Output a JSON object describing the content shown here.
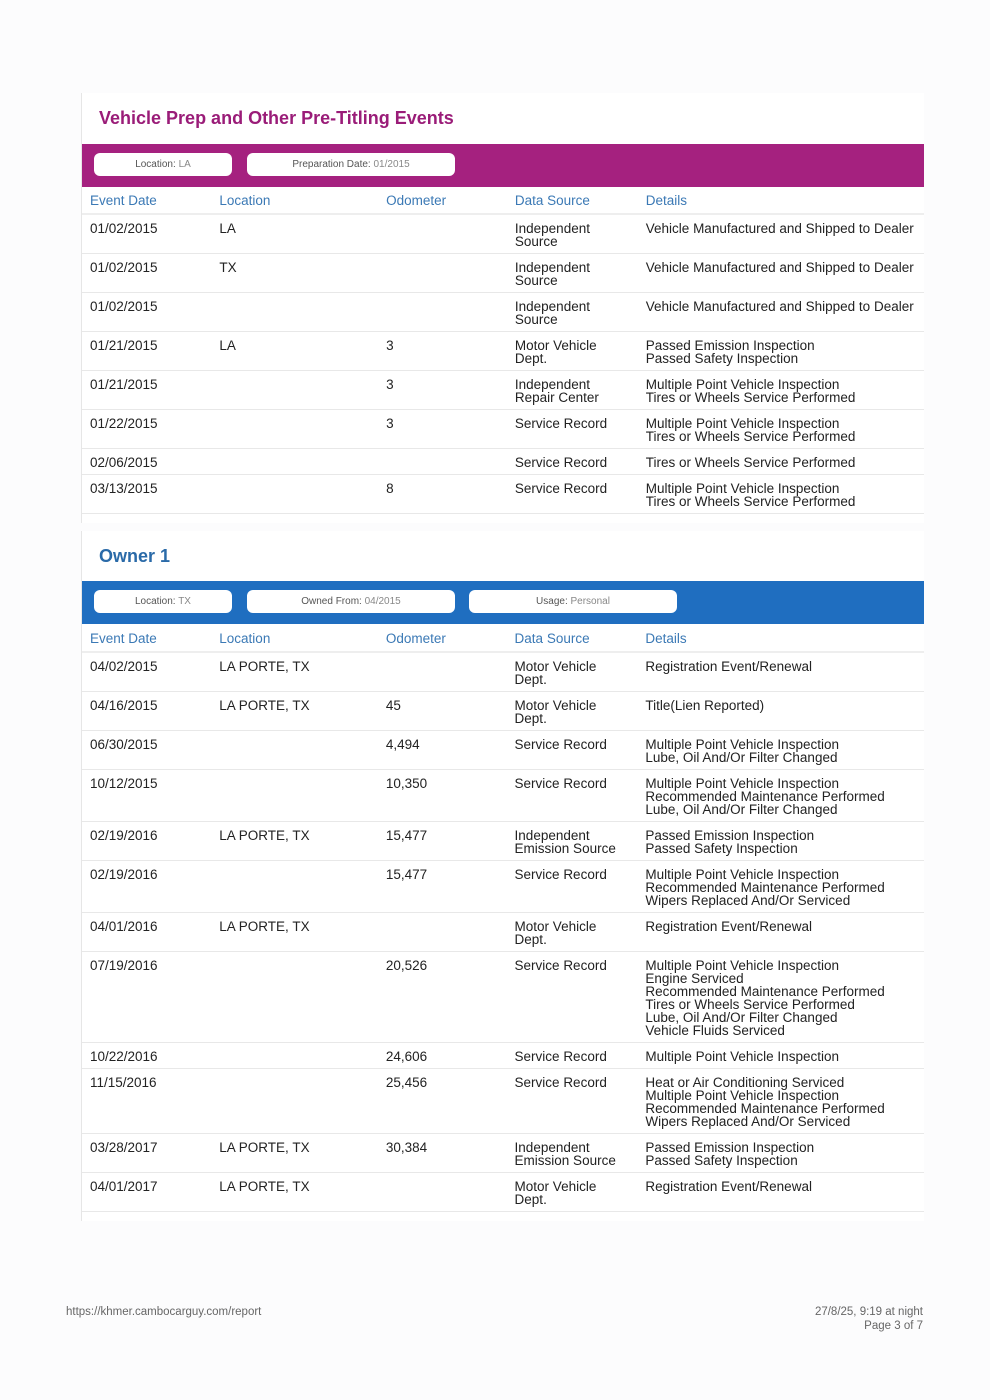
{
  "colors": {
    "prep": "#a5217f",
    "prep_title": "#9a1c78",
    "owner": "#1f6ec0",
    "owner_title": "#2a6aa8"
  },
  "columns": [
    "Event Date",
    "Location",
    "Odometer",
    "Data Source",
    "Details"
  ],
  "prep": {
    "title": "Vehicle Prep and Other Pre-Titling Events",
    "pills": [
      {
        "k": "Location:",
        "v": "LA"
      },
      {
        "k": "Preparation Date:",
        "v": "01/2015"
      }
    ],
    "rows": [
      [
        "01/02/2015",
        "LA",
        "",
        "Independent\nSource",
        "Vehicle Manufactured and Shipped to Dealer"
      ],
      [
        "01/02/2015",
        "TX",
        "",
        "Independent\nSource",
        "Vehicle Manufactured and Shipped to Dealer"
      ],
      [
        "01/02/2015",
        "",
        "",
        "Independent\nSource",
        "Vehicle Manufactured and Shipped to Dealer"
      ],
      [
        "01/21/2015",
        "LA",
        "3",
        "Motor Vehicle\nDept.",
        "Passed Emission Inspection\nPassed Safety Inspection"
      ],
      [
        "01/21/2015",
        "",
        "3",
        "Independent\nRepair Center",
        "Multiple Point Vehicle Inspection\nTires or Wheels Service Performed"
      ],
      [
        "01/22/2015",
        "",
        "3",
        "Service Record",
        "Multiple Point Vehicle Inspection\nTires or Wheels Service Performed"
      ],
      [
        "02/06/2015",
        "",
        "",
        "Service Record",
        "Tires or Wheels Service Performed"
      ],
      [
        "03/13/2015",
        "",
        "8",
        "Service Record",
        "Multiple Point Vehicle Inspection\nTires or Wheels Service Performed"
      ]
    ]
  },
  "owner": {
    "title": "Owner 1",
    "pills": [
      {
        "k": "Location:",
        "v": "TX"
      },
      {
        "k": "Owned From:",
        "v": "04/2015"
      },
      {
        "k": "Usage:",
        "v": "Personal"
      }
    ],
    "rows": [
      [
        "04/02/2015",
        "LA PORTE, TX",
        "",
        "Motor Vehicle\nDept.",
        "Registration Event/Renewal"
      ],
      [
        "04/16/2015",
        "LA PORTE, TX",
        "45",
        "Motor Vehicle\nDept.",
        "Title(Lien Reported)"
      ],
      [
        "06/30/2015",
        "",
        "4,494",
        "Service Record",
        "Multiple Point Vehicle Inspection\nLube, Oil And/Or Filter Changed"
      ],
      [
        "10/12/2015",
        "",
        "10,350",
        "Service Record",
        "Multiple Point Vehicle Inspection\nRecommended Maintenance Performed\nLube, Oil And/Or Filter Changed"
      ],
      [
        "02/19/2016",
        "LA PORTE, TX",
        "15,477",
        "Independent\nEmission Source",
        "Passed Emission Inspection\nPassed Safety Inspection"
      ],
      [
        "02/19/2016",
        "",
        "15,477",
        "Service Record",
        "Multiple Point Vehicle Inspection\nRecommended Maintenance Performed\nWipers Replaced And/Or Serviced"
      ],
      [
        "04/01/2016",
        "LA PORTE, TX",
        "",
        "Motor Vehicle\nDept.",
        "Registration Event/Renewal"
      ],
      [
        "07/19/2016",
        "",
        "20,526",
        "Service Record",
        "Multiple Point Vehicle Inspection\nEngine Serviced\nRecommended Maintenance Performed\nTires or Wheels Service Performed\nLube, Oil And/Or Filter Changed\nVehicle Fluids Serviced"
      ],
      [
        "10/22/2016",
        "",
        "24,606",
        "Service Record",
        "Multiple Point Vehicle Inspection"
      ],
      [
        "11/15/2016",
        "",
        "25,456",
        "Service Record",
        "Heat or Air Conditioning Serviced\nMultiple Point Vehicle Inspection\nRecommended Maintenance Performed\nWipers Replaced And/Or Serviced"
      ],
      [
        "03/28/2017",
        "LA PORTE, TX",
        "30,384",
        "Independent\nEmission Source",
        "Passed Emission Inspection\nPassed Safety Inspection"
      ],
      [
        "04/01/2017",
        "LA PORTE, TX",
        "",
        "Motor Vehicle\nDept.",
        "Registration Event/Renewal"
      ]
    ]
  },
  "footer": {
    "url": "https://khmer.cambocarguy.com/report",
    "datetime": "27/8/25, 9:19 at night",
    "page": "Page 3 of 7"
  }
}
